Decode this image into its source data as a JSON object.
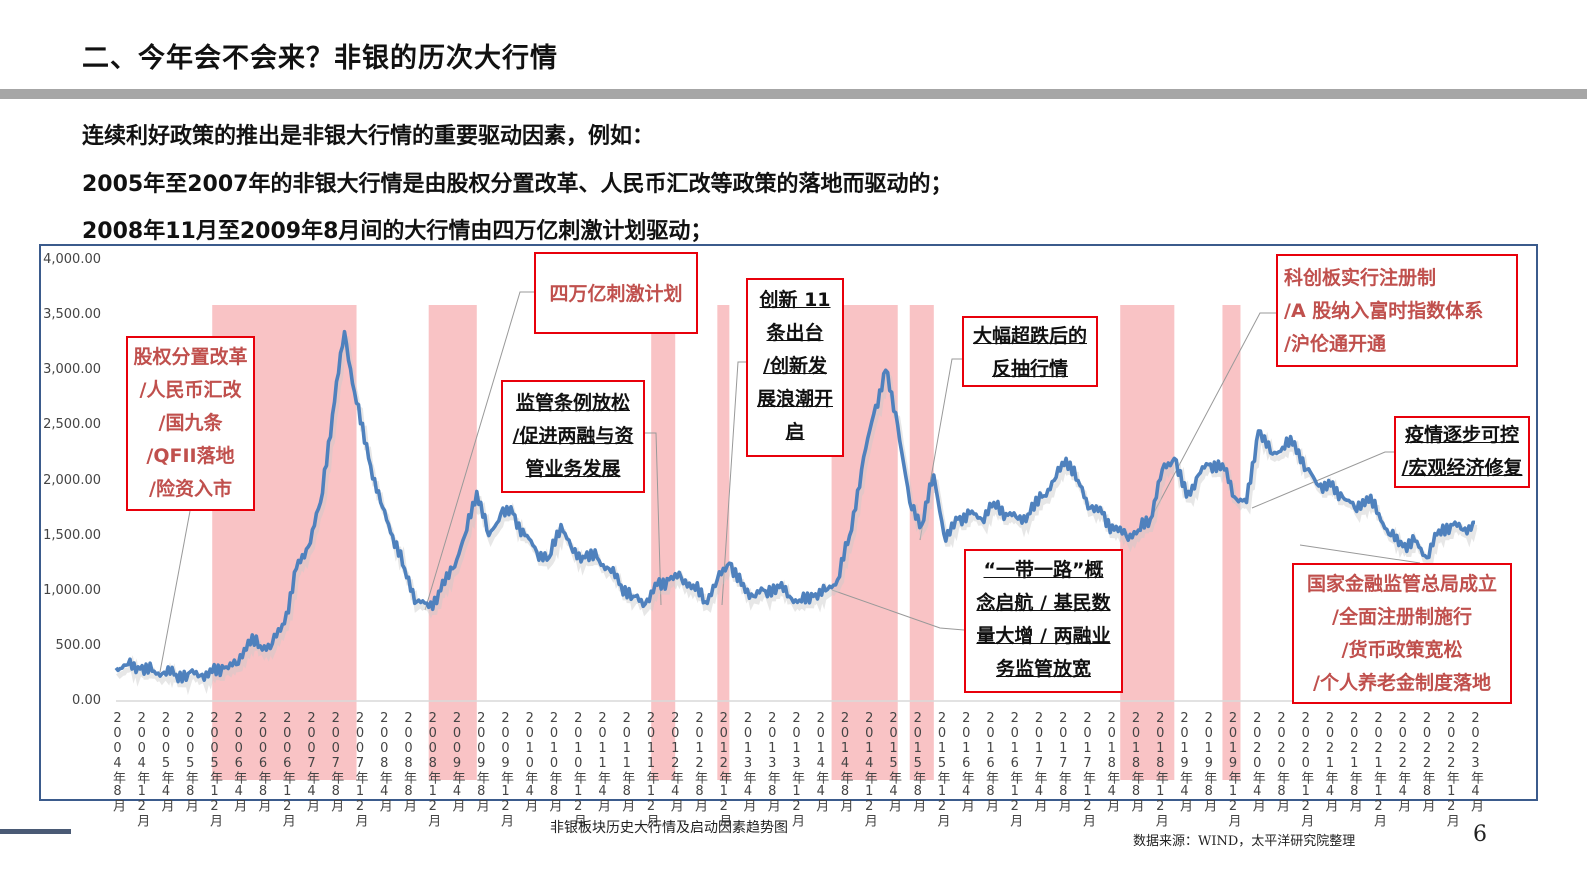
{
  "header": {
    "title": "二、今年会不会来？非银的历次大行情"
  },
  "body": {
    "lines": [
      "连续利好政策的推出是非银大行情的重要驱动因素，例如：",
      "2005年至2007年的非银大行情是由股权分置改革、人民币汇改等政策的落地而驱动的；",
      "2008年11月至2009年8月间的大行情由四万亿刺激计划驱动；"
    ]
  },
  "annotations": {
    "a1": {
      "lines": [
        "股权分置改革",
        "/人民币汇改",
        "/国九条",
        "/QFII落地",
        "/险资入市"
      ],
      "color": "#c0504d"
    },
    "a2": {
      "lines": [
        "四万亿刺激计划"
      ],
      "color": "#c0504d"
    },
    "a3": {
      "lines": [
        "监管条例放松",
        "/促进两融与资",
        "管业务发展"
      ],
      "color": "#111111"
    },
    "a4": {
      "lines": [
        "创新 11",
        "条出台",
        "/创新发",
        "展浪潮开",
        "启"
      ],
      "color": "#111111"
    },
    "a5": {
      "lines": [
        "大幅超跌后的",
        "反抽行情"
      ],
      "color": "#111111"
    },
    "a6": {
      "lines": [
        "“一带一路”概",
        "念启航 / 基民数",
        "量大增 / 两融业",
        "务监管放宽"
      ],
      "color": "#111111"
    },
    "a7": {
      "lines": [
        "科创板实行注册制",
        "/A 股纳入富时指数体系",
        "/沪伦通开通"
      ],
      "color": "#c0504d"
    },
    "a8": {
      "lines": [
        "疫情逐步可控",
        "/宏观经济修复"
      ],
      "color": "#111111"
    },
    "a9": {
      "lines": [
        "国家金融监管总局成立",
        "/全面注册制施行",
        "/货币政策宽松",
        "/个人养老金制度落地"
      ],
      "color": "#c0504d"
    }
  },
  "footer": {
    "caption": "非银板块历史大行情及启动因素趋势图",
    "source": "数据来源：WIND，太平洋研究院整理",
    "page_number": "6"
  },
  "colors": {
    "line": "#4f81bd",
    "highlight": "#f7b4b6",
    "annotation_border": "#e8000b",
    "annotation_red_text": "#c0504d"
  },
  "chart_data": {
    "type": "line",
    "title": "非银板块历史大行情及启动因素趋势图",
    "xlabel": "",
    "ylabel": "",
    "ylim": [
      0,
      4000
    ],
    "grid": false,
    "legend": "none",
    "y_ticks": [
      "0.00",
      "500.00",
      "1,000.00",
      "1,500.00",
      "2,000.00",
      "2,500.00",
      "3,000.00",
      "3,500.00",
      "4,000.00"
    ],
    "x_ticks": [
      "2004年8月",
      "2004年12月",
      "2005年4月",
      "2005年8月",
      "2005年12月",
      "2006年4月",
      "2006年8月",
      "2006年12月",
      "2007年4月",
      "2007年8月",
      "2007年12月",
      "2008年4月",
      "2008年8月",
      "2008年12月",
      "2009年4月",
      "2009年8月",
      "2009年12月",
      "2010年4月",
      "2010年8月",
      "2010年12月",
      "2011年4月",
      "2011年8月",
      "2011年12月",
      "2012年4月",
      "2012年8月",
      "2012年12月",
      "2013年4月",
      "2013年8月",
      "2013年12月",
      "2014年4月",
      "2014年8月",
      "2014年12月",
      "2015年4月",
      "2015年8月",
      "2015年12月",
      "2016年4月",
      "2016年8月",
      "2016年12月",
      "2017年4月",
      "2017年8月",
      "2017年12月",
      "2018年4月",
      "2018年8月",
      "2018年12月",
      "2019年4月",
      "2019年8月",
      "2019年12月",
      "2020年4月",
      "2020年8月",
      "2020年12月",
      "2021年4月",
      "2021年8月",
      "2021年12月",
      "2022年4月",
      "2022年8月",
      "2022年12月",
      "2023年4月"
    ],
    "series": [
      {
        "name": "非银板块指数",
        "x": [
          "2004-08",
          "2004-10",
          "2004-12",
          "2005-02",
          "2005-04",
          "2005-06",
          "2005-08",
          "2005-10",
          "2005-12",
          "2006-02",
          "2006-04",
          "2006-06",
          "2006-08",
          "2006-10",
          "2006-12",
          "2007-02",
          "2007-04",
          "2007-06",
          "2007-08",
          "2007-10",
          "2007-12",
          "2008-02",
          "2008-04",
          "2008-06",
          "2008-08",
          "2008-10",
          "2008-12",
          "2009-02",
          "2009-04",
          "2009-06",
          "2009-08",
          "2009-10",
          "2009-12",
          "2010-02",
          "2010-04",
          "2010-06",
          "2010-08",
          "2010-10",
          "2010-12",
          "2011-02",
          "2011-04",
          "2011-06",
          "2011-08",
          "2011-10",
          "2011-12",
          "2012-02",
          "2012-04",
          "2012-06",
          "2012-08",
          "2012-10",
          "2012-12",
          "2013-02",
          "2013-04",
          "2013-06",
          "2013-08",
          "2013-10",
          "2013-12",
          "2014-02",
          "2014-04",
          "2014-06",
          "2014-08",
          "2014-10",
          "2014-12",
          "2015-02",
          "2015-04",
          "2015-06",
          "2015-08",
          "2015-10",
          "2015-12",
          "2016-02",
          "2016-04",
          "2016-06",
          "2016-08",
          "2016-10",
          "2016-12",
          "2017-02",
          "2017-04",
          "2017-06",
          "2017-08",
          "2017-10",
          "2017-12",
          "2018-02",
          "2018-04",
          "2018-06",
          "2018-08",
          "2018-10",
          "2018-12",
          "2019-02",
          "2019-04",
          "2019-06",
          "2019-08",
          "2019-10",
          "2019-12",
          "2020-02",
          "2020-04",
          "2020-06",
          "2020-08",
          "2020-10",
          "2020-12",
          "2021-02",
          "2021-04",
          "2021-06",
          "2021-08",
          "2021-10",
          "2021-12",
          "2022-02",
          "2022-04",
          "2022-06",
          "2022-08",
          "2022-10",
          "2022-12",
          "2023-02",
          "2023-04",
          "2023-06"
        ],
        "values": [
          300,
          330,
          290,
          270,
          260,
          240,
          250,
          230,
          260,
          300,
          330,
          550,
          500,
          520,
          700,
          1200,
          1400,
          1800,
          2600,
          3350,
          2700,
          2200,
          1800,
          1500,
          1200,
          900,
          850,
          1000,
          1200,
          1500,
          1900,
          1500,
          1700,
          1700,
          1500,
          1350,
          1300,
          1600,
          1350,
          1300,
          1300,
          1200,
          1050,
          950,
          880,
          1050,
          1100,
          1120,
          1050,
          900,
          1100,
          1250,
          1050,
          950,
          1000,
          1050,
          950,
          900,
          950,
          1000,
          1100,
          1500,
          2100,
          2600,
          3000,
          2500,
          1800,
          1600,
          2050,
          1450,
          1650,
          1700,
          1650,
          1800,
          1700,
          1650,
          1700,
          1850,
          2000,
          2200,
          2000,
          1750,
          1700,
          1550,
          1500,
          1550,
          1650,
          2100,
          2200,
          1850,
          2050,
          2150,
          2150,
          1850,
          1800,
          2450,
          2250,
          2300,
          2350,
          2100,
          1950,
          1950,
          1850,
          1750,
          1850,
          1700,
          1500,
          1400,
          1450,
          1300,
          1550,
          1600,
          1550,
          1620
        ]
      }
    ],
    "highlight_periods": [
      {
        "start": "2005-12",
        "end": "2007-12"
      },
      {
        "start": "2008-12",
        "end": "2009-08"
      },
      {
        "start": "2012-01",
        "end": "2012-05"
      },
      {
        "start": "2012-12",
        "end": "2013-02"
      },
      {
        "start": "2014-07",
        "end": "2015-06"
      },
      {
        "start": "2015-08",
        "end": "2015-12"
      },
      {
        "start": "2018-07",
        "end": "2019-04"
      },
      {
        "start": "2019-12",
        "end": "2020-03"
      }
    ],
    "annotations": [
      "股权分置改革/人民币汇改/国九条/QFII落地/险资入市",
      "四万亿刺激计划",
      "监管条例放松/促进两融与资管业务发展",
      "创新11条出台/创新发展浪潮开启",
      "大幅超跌后的反抽行情",
      "“一带一路”概念启航/基民数量大增/两融业务监管放宽",
      "科创板实行注册制/A股纳入富时指数体系/沪伦通开通",
      "疫情逐步可控/宏观经济修复",
      "国家金融监管总局成立/全面注册制施行/货币政策宽松/个人养老金制度落地"
    ]
  }
}
